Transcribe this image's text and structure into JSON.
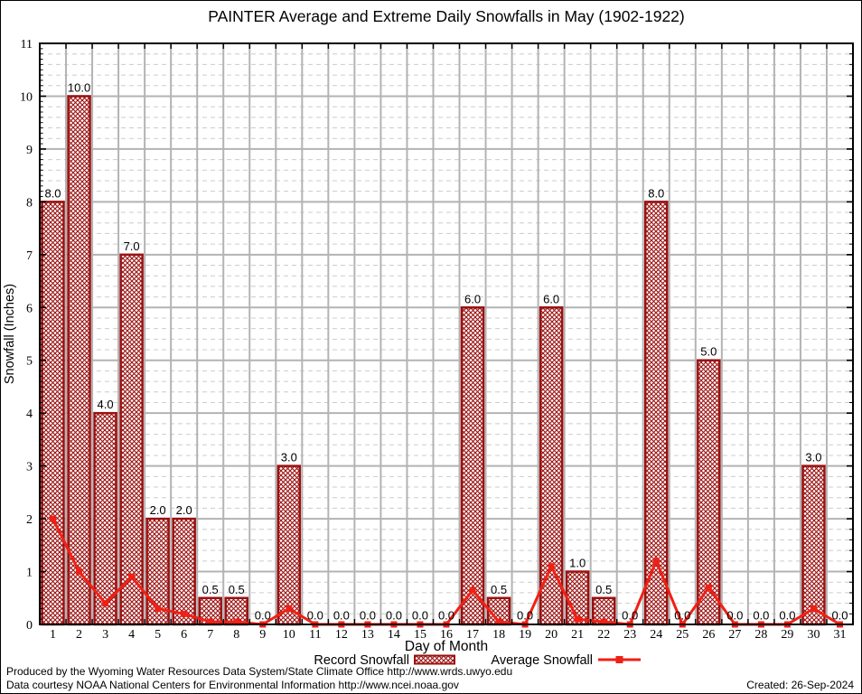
{
  "chart_data": {
    "type": "bar",
    "title": "PAINTER Average and Extreme Daily Snowfalls in May (1902-1922)",
    "xlabel": "Day of Month",
    "ylabel": "Snowfall (Inches)",
    "ylim": [
      0,
      11
    ],
    "y_major_step": 1,
    "y_minor_step": 0.2,
    "grid": true,
    "legend_position": "bottom",
    "bar_value_labels": true,
    "categories": [
      1,
      2,
      3,
      4,
      5,
      6,
      7,
      8,
      9,
      10,
      11,
      12,
      13,
      14,
      15,
      16,
      17,
      18,
      19,
      20,
      21,
      22,
      23,
      24,
      25,
      26,
      27,
      28,
      29,
      30,
      31
    ],
    "series": [
      {
        "name": "Record Snowfall",
        "type": "bar",
        "values": [
          8.0,
          10.0,
          4.0,
          7.0,
          2.0,
          2.0,
          0.5,
          0.5,
          0.0,
          3.0,
          0.0,
          0.0,
          0.0,
          0.0,
          0.0,
          0.0,
          6.0,
          0.5,
          0.0,
          6.0,
          1.0,
          0.5,
          0.0,
          8.0,
          0.0,
          5.0,
          0.0,
          0.0,
          0.0,
          3.0,
          0.0
        ]
      },
      {
        "name": "Average Snowfall",
        "type": "line",
        "values": [
          2.0,
          1.0,
          0.4,
          0.9,
          0.3,
          0.2,
          0.05,
          0.05,
          0.0,
          0.3,
          0.0,
          0.0,
          0.0,
          0.0,
          0.0,
          0.0,
          0.65,
          0.05,
          0.0,
          1.1,
          0.1,
          0.05,
          0.0,
          1.2,
          0.0,
          0.7,
          0.0,
          0.0,
          0.0,
          0.3,
          0.0
        ]
      }
    ],
    "colors": {
      "bar_outline": "#9a1111",
      "bar_hatch": "#9a1111",
      "line": "#f02015",
      "grid_major": "#b3b3b3",
      "grid_minor": "#cccccc",
      "axis": "#000000",
      "text": "#000000"
    }
  },
  "footer": {
    "line1": "Produced by the Wyoming Water Resources Data System/State Climate Office http://www.wrds.uwyo.edu",
    "line2": "Data courtesy NOAA National Centers for Environmental Information http://www.ncei.noaa.gov",
    "created": "Created: 26-Sep-2024"
  }
}
